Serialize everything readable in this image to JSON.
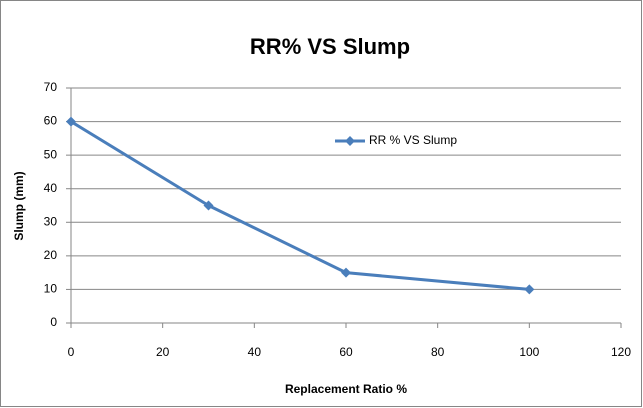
{
  "chart_data": {
    "type": "line",
    "title": "RR% VS Slump",
    "x_label": "Replacement Ratio %",
    "y_label": "Slump  (mm)",
    "x": [
      0,
      30,
      60,
      100
    ],
    "series": [
      {
        "name": "RR % VS Slump",
        "color": "#4a7ebb",
        "values": [
          60,
          35,
          15,
          10
        ]
      }
    ],
    "xlim": [
      0,
      120
    ],
    "xticks": [
      0,
      20,
      40,
      60,
      80,
      100,
      120
    ],
    "ylim": [
      0,
      70
    ],
    "yticks": [
      0,
      10,
      20,
      30,
      40,
      50,
      60,
      70
    ],
    "grid": true,
    "legend": "upper right"
  }
}
